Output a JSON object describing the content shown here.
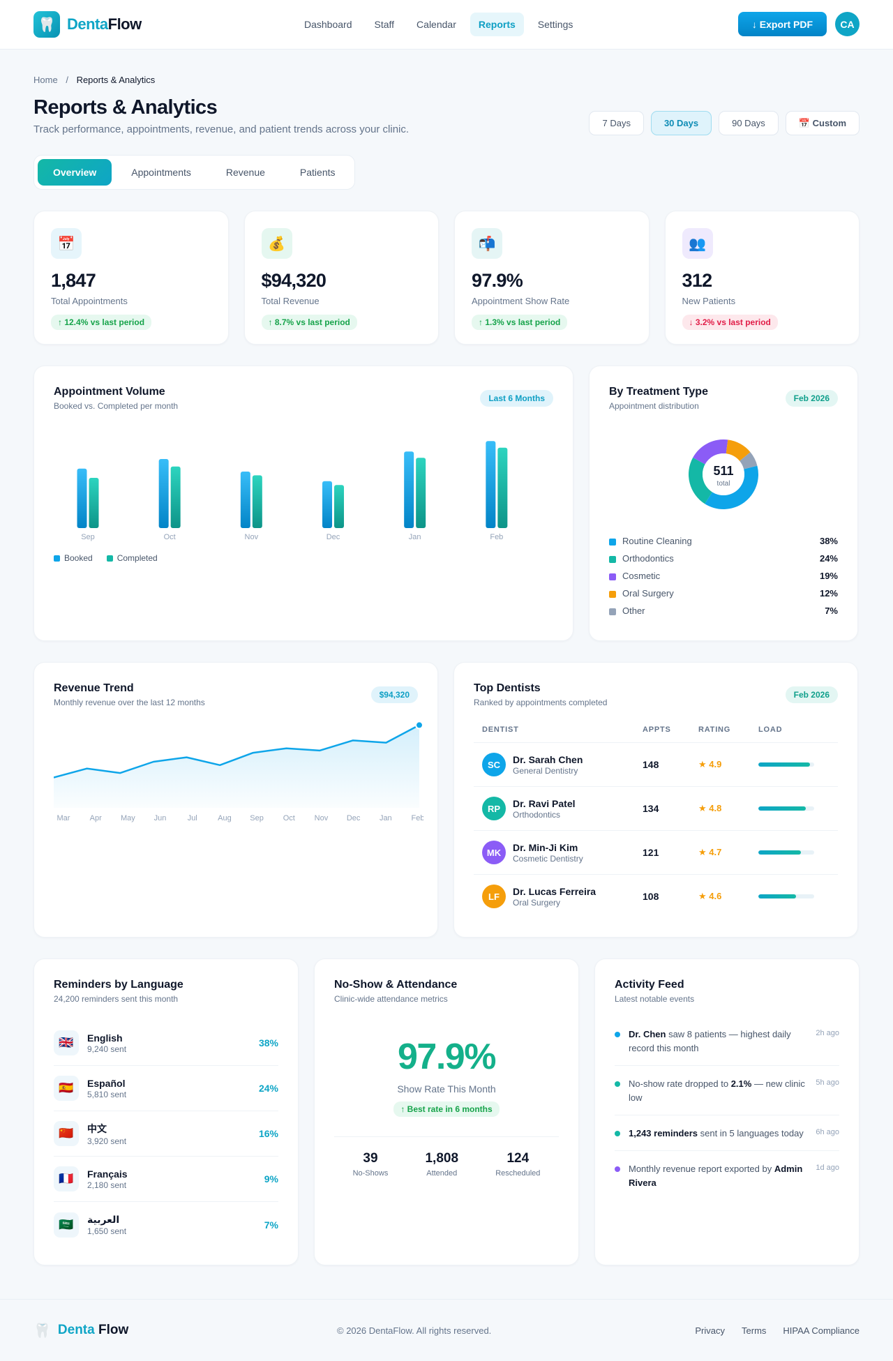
{
  "brand": {
    "icon": "tooth-icon",
    "name_a": "Denta",
    "name_b": "Flow"
  },
  "nav": [
    {
      "label": "Dashboard",
      "active": false
    },
    {
      "label": "Staff",
      "active": false
    },
    {
      "label": "Calendar",
      "active": false
    },
    {
      "label": "Reports",
      "active": true
    },
    {
      "label": "Settings",
      "active": false
    }
  ],
  "header": {
    "export_label": "↓ Export PDF",
    "avatar_initials": "CA"
  },
  "breadcrumb": {
    "home": "Home",
    "sep": "/",
    "current": "Reports & Analytics"
  },
  "page": {
    "title": "Reports & Analytics",
    "subtitle": "Track performance, appointments, revenue, and patient trends across your clinic."
  },
  "ranges": [
    {
      "label": "7 Days",
      "active": false
    },
    {
      "label": "30 Days",
      "active": true
    },
    {
      "label": "90 Days",
      "active": false
    },
    {
      "label": "📅 Custom",
      "active": false
    }
  ],
  "tabs": [
    {
      "label": "Overview",
      "active": true
    },
    {
      "label": "Appointments",
      "active": false
    },
    {
      "label": "Revenue",
      "active": false
    },
    {
      "label": "Patients",
      "active": false
    }
  ],
  "kpis": [
    {
      "icon": "📅",
      "icon_name": "calendar-icon",
      "icon_bg": "#e6f5fb",
      "value": "1,847",
      "label": "Total Appointments",
      "change": "↑ 12.4% vs last period",
      "trend": "up"
    },
    {
      "icon": "💰",
      "icon_name": "money-bag-icon",
      "icon_bg": "#e5f7f0",
      "value": "$94,320",
      "label": "Total Revenue",
      "change": "↑ 8.7% vs last period",
      "trend": "up"
    },
    {
      "icon": "📬",
      "icon_name": "mailbox-icon",
      "icon_bg": "#e5f5f5",
      "value": "97.9%",
      "label": "Appointment Show Rate",
      "change": "↑ 1.3% vs last period",
      "trend": "up"
    },
    {
      "icon": "👥",
      "icon_name": "users-icon",
      "icon_bg": "#efeafd",
      "value": "312",
      "label": "New Patients",
      "change": "↓ 3.2% vs last period",
      "trend": "down"
    }
  ],
  "volume": {
    "title": "Appointment Volume",
    "subtitle": "Booked vs. Completed per month",
    "pill": "Last 6 Months",
    "legend": [
      "Booked",
      "Completed"
    ]
  },
  "treatment": {
    "title": "By Treatment Type",
    "subtitle": "Appointment distribution",
    "pill": "Feb 2026",
    "center_value": "511",
    "center_label": "total",
    "items": [
      {
        "label": "Routine Cleaning",
        "pct": "38%",
        "color": "#0ea5e9"
      },
      {
        "label": "Orthodontics",
        "pct": "24%",
        "color": "#14b8a6"
      },
      {
        "label": "Cosmetic",
        "pct": "19%",
        "color": "#8b5cf6"
      },
      {
        "label": "Oral Surgery",
        "pct": "12%",
        "color": "#f59e0b"
      },
      {
        "label": "Other",
        "pct": "7%",
        "color": "#94a3b8"
      }
    ]
  },
  "revenue": {
    "title": "Revenue Trend",
    "subtitle": "Monthly revenue over the last 12 months",
    "pill": "$94,320"
  },
  "dentists": {
    "title": "Top Dentists",
    "subtitle": "Ranked by appointments completed",
    "pill": "Feb 2026",
    "columns": [
      "DENTIST",
      "APPTS",
      "RATING",
      "LOAD"
    ],
    "rows": [
      {
        "initials": "SC",
        "color": "#0ea5e9",
        "name": "Dr. Sarah Chen",
        "specialty": "General Dentistry",
        "appts": "148",
        "rating": "★ 4.9",
        "load": 0.93
      },
      {
        "initials": "RP",
        "color": "#14b8a6",
        "name": "Dr. Ravi Patel",
        "specialty": "Orthodontics",
        "appts": "134",
        "rating": "★ 4.8",
        "load": 0.85
      },
      {
        "initials": "MK",
        "color": "#8b5cf6",
        "name": "Dr. Min-Ji Kim",
        "specialty": "Cosmetic Dentistry",
        "appts": "121",
        "rating": "★ 4.7",
        "load": 0.76
      },
      {
        "initials": "LF",
        "color": "#f59e0b",
        "name": "Dr. Lucas Ferreira",
        "specialty": "Oral Surgery",
        "appts": "108",
        "rating": "★ 4.6",
        "load": 0.68
      }
    ]
  },
  "languages": {
    "title": "Reminders by Language",
    "subtitle": "24,200 reminders sent this month",
    "items": [
      {
        "flag": "🇬🇧",
        "name": "English",
        "count": "9,240 sent",
        "pct": "38%"
      },
      {
        "flag": "🇪🇸",
        "name": "Español",
        "count": "5,810 sent",
        "pct": "24%"
      },
      {
        "flag": "🇨🇳",
        "name": "中文",
        "count": "3,920 sent",
        "pct": "16%"
      },
      {
        "flag": "🇫🇷",
        "name": "Français",
        "count": "2,180 sent",
        "pct": "9%"
      },
      {
        "flag": "🇸🇦",
        "name": "العربية",
        "count": "1,650 sent",
        "pct": "7%"
      }
    ]
  },
  "attendance": {
    "title": "No-Show & Attendance",
    "subtitle": "Clinic-wide attendance metrics",
    "rate": "97.9%",
    "rate_label": "Show Rate This Month",
    "badge": "↑ Best rate in 6 months",
    "stats": [
      {
        "value": "39",
        "label": "No-Shows"
      },
      {
        "value": "1,808",
        "label": "Attended"
      },
      {
        "value": "124",
        "label": "Rescheduled"
      }
    ]
  },
  "feed": {
    "title": "Activity Feed",
    "subtitle": "Latest notable events",
    "items": [
      {
        "dot": "#0ea5e9",
        "html_parts": [
          [
            "b",
            "Dr. Chen"
          ],
          [
            "t",
            " saw 8 patients — highest daily record this month"
          ]
        ],
        "time": "2h ago"
      },
      {
        "dot": "#14b8a6",
        "html_parts": [
          [
            "t",
            "No-show rate dropped to "
          ],
          [
            "b",
            "2.1%"
          ],
          [
            "t",
            " — new clinic low"
          ]
        ],
        "time": "5h ago"
      },
      {
        "dot": "#14b8a6",
        "html_parts": [
          [
            "b",
            "1,243 reminders"
          ],
          [
            "t",
            " sent in 5 languages today"
          ]
        ],
        "time": "6h ago"
      },
      {
        "dot": "#8b5cf6",
        "html_parts": [
          [
            "t",
            "Monthly revenue report exported by "
          ],
          [
            "b",
            "Admin Rivera"
          ]
        ],
        "time": "1d ago"
      }
    ]
  },
  "footer": {
    "brand_a": "Denta",
    "brand_b": "Flow",
    "copyright": "© 2026 DentaFlow. All rights reserved.",
    "links": [
      "Privacy",
      "Terms",
      "HIPAA Compliance"
    ]
  },
  "chart_data": [
    {
      "type": "bar",
      "categories": [
        "Sep",
        "Oct",
        "Nov",
        "Dec",
        "Jan",
        "Feb"
      ],
      "series": [
        {
          "name": "Booked",
          "values": [
            142,
            165,
            135,
            112,
            183,
            208
          ],
          "color": "#0ea5e9"
        },
        {
          "name": "Completed",
          "values": [
            120,
            147,
            126,
            103,
            168,
            192
          ],
          "color": "#14b8a6"
        }
      ],
      "title": "Appointment Volume",
      "ylim": [
        0,
        230
      ],
      "grid": false,
      "legend": "bottom-left"
    },
    {
      "type": "pie",
      "categories": [
        "Routine Cleaning",
        "Orthodontics",
        "Cosmetic",
        "Oral Surgery",
        "Other"
      ],
      "values": [
        38,
        24,
        19,
        12,
        7
      ],
      "title": "By Treatment Type"
    },
    {
      "type": "area",
      "x": [
        "Mar",
        "Apr",
        "May",
        "Jun",
        "Jul",
        "Aug",
        "Sep",
        "Oct",
        "Nov",
        "Dec",
        "Jan",
        "Feb"
      ],
      "values": [
        71000,
        75000,
        73000,
        78000,
        80000,
        76500,
        82000,
        84000,
        83000,
        87500,
        86500,
        94320
      ],
      "title": "Revenue Trend",
      "ylim": [
        60000,
        96000
      ],
      "grid": false
    }
  ]
}
